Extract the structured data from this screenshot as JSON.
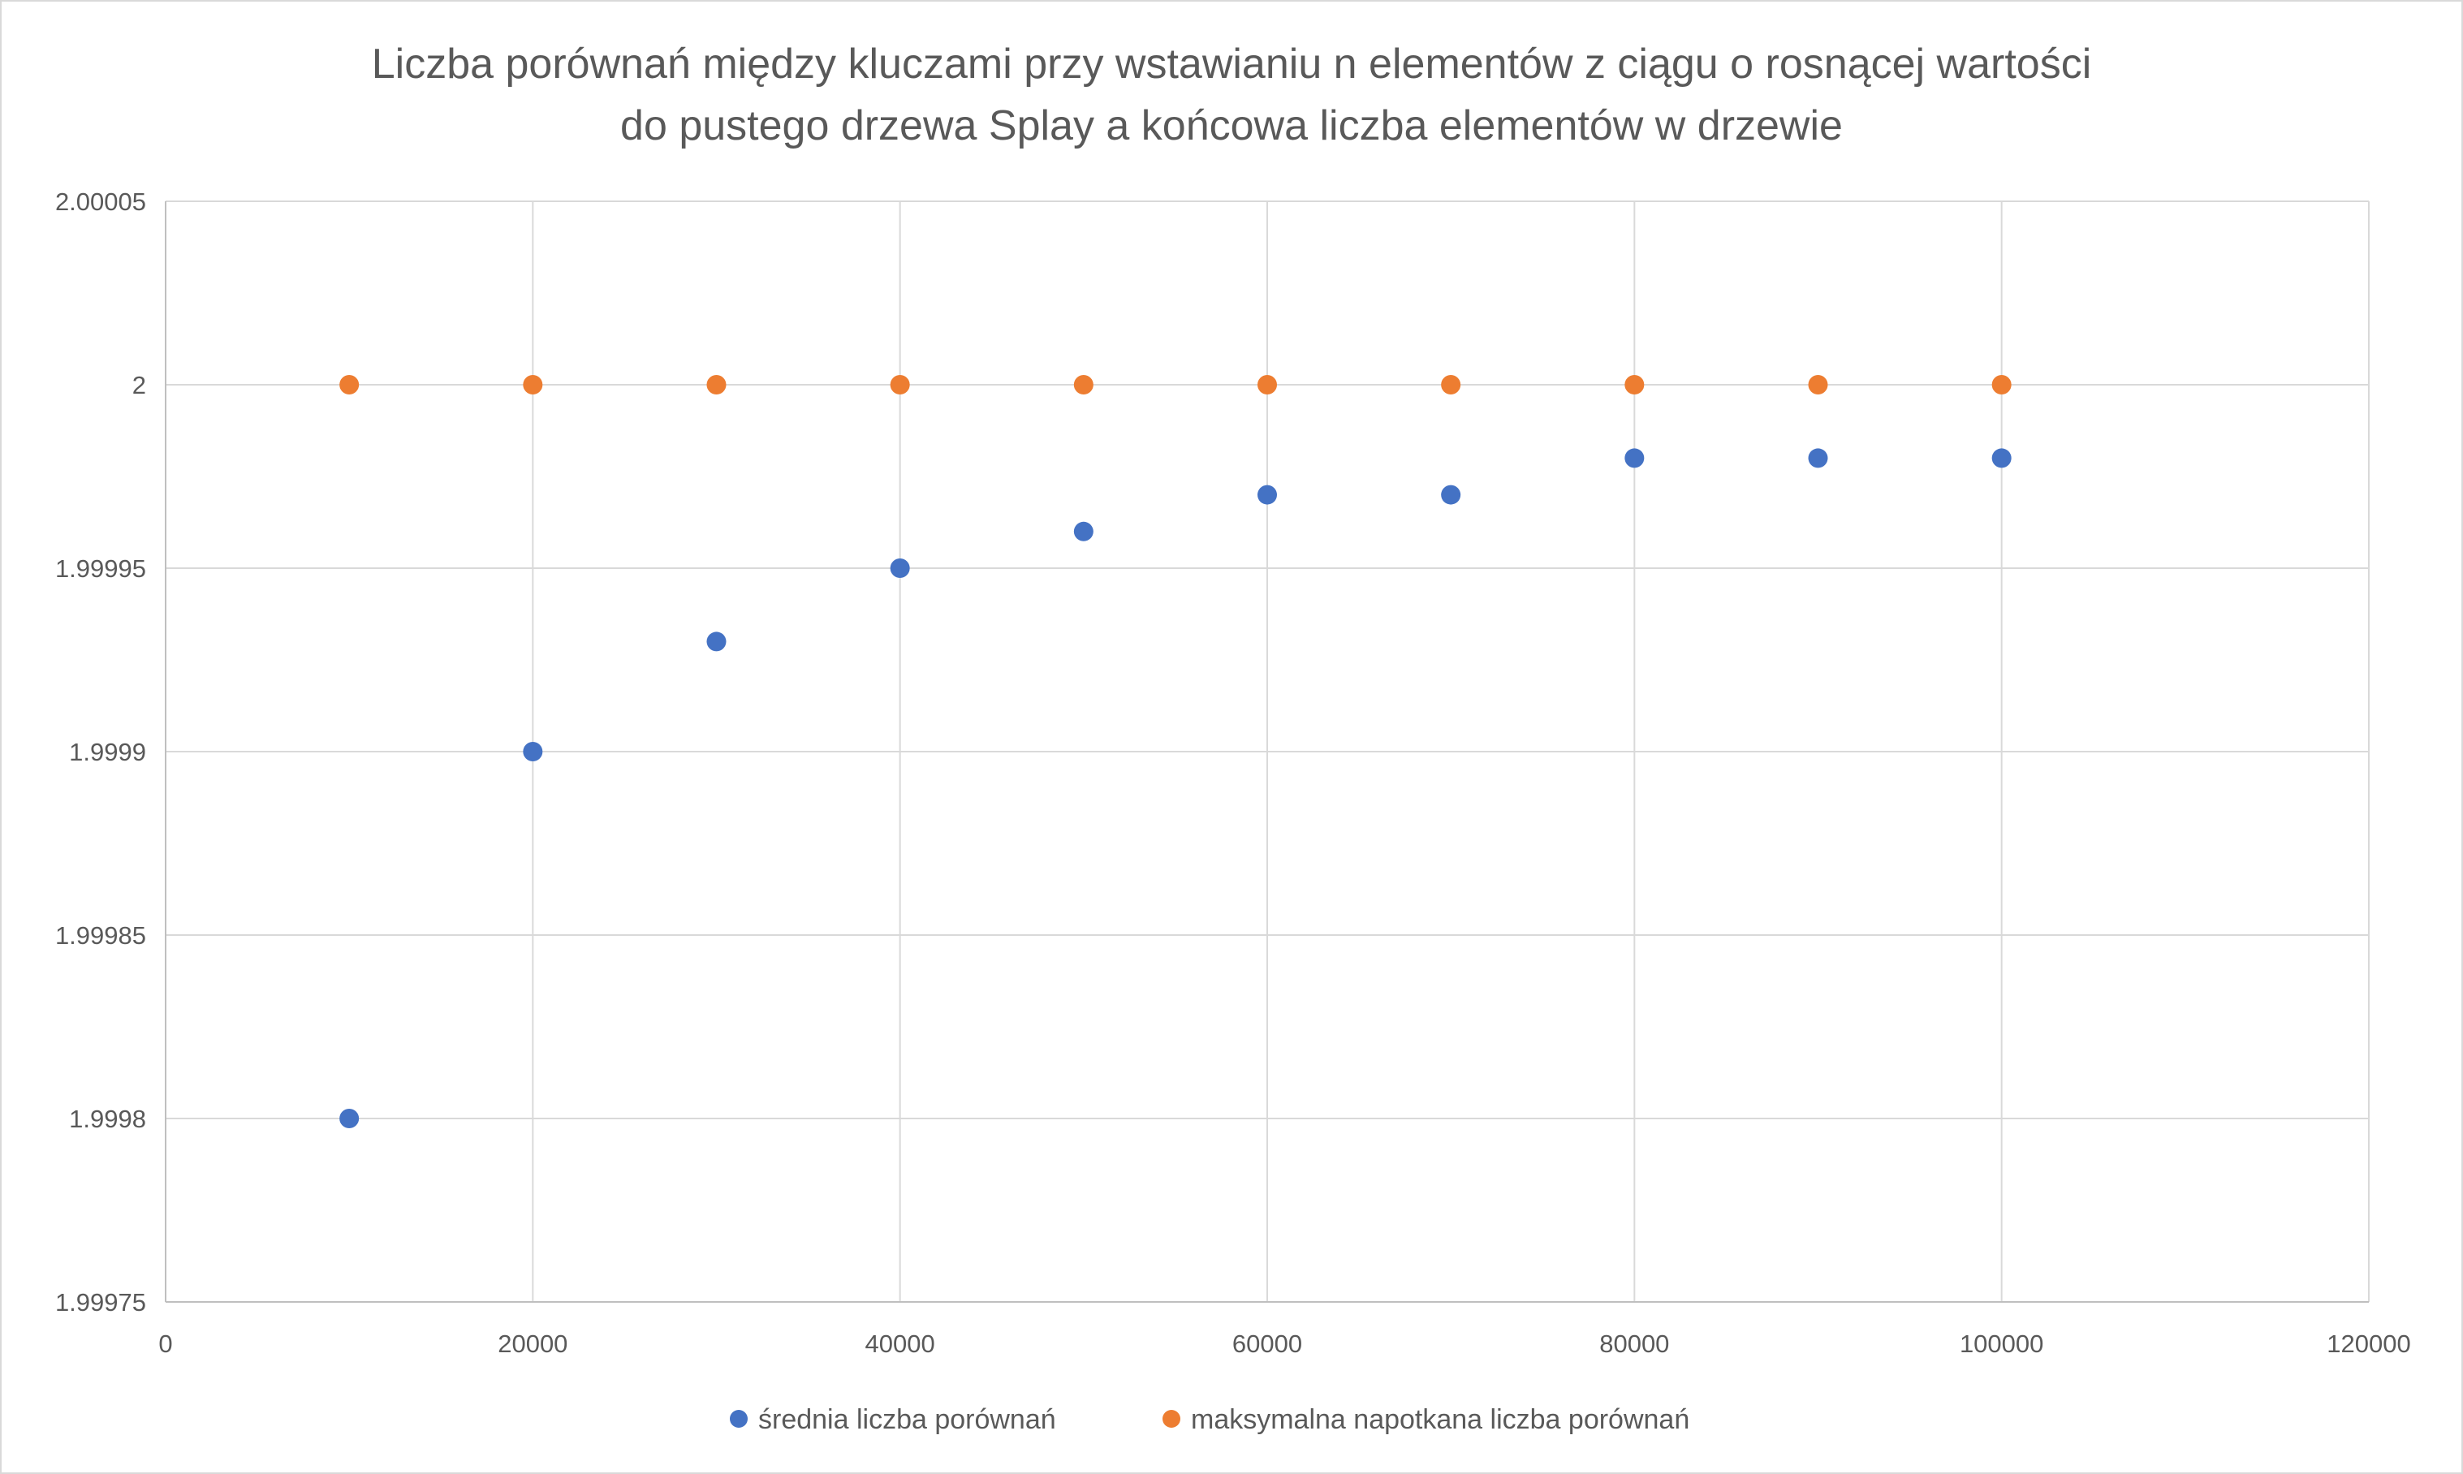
{
  "chart_data": {
    "type": "scatter",
    "title": [
      "Liczba porównań między kluczami przy wstawianiu n elementów z ciągu o rosnącej wartości",
      "do pustego drzewa Splay a końcowa liczba elementów w drzewie"
    ],
    "xlabel": "",
    "ylabel": "",
    "xlim": [
      0,
      120000
    ],
    "ylim": [
      1.99975,
      2.00005
    ],
    "x_ticks": [
      0,
      20000,
      40000,
      60000,
      80000,
      100000,
      120000
    ],
    "y_ticks": [
      1.99975,
      1.9998,
      1.99985,
      1.9999,
      1.99995,
      2,
      2.00005
    ],
    "x_tick_labels": [
      "0",
      "20000",
      "40000",
      "60000",
      "80000",
      "100000",
      "120000"
    ],
    "y_tick_labels": [
      "1.99975",
      "1.9998",
      "1.99985",
      "1.9999",
      "1.99995",
      "2",
      "2.00005"
    ],
    "grid": true,
    "legend_position": "bottom",
    "series": [
      {
        "name": "średnia liczba porównań",
        "color": "#4472c4",
        "x": [
          10000,
          20000,
          30000,
          40000,
          50000,
          60000,
          70000,
          80000,
          90000,
          100000
        ],
        "y": [
          1.9998,
          1.9999,
          1.99993,
          1.99995,
          1.99996,
          1.99997,
          1.99997,
          1.99998,
          1.99998,
          1.99998
        ]
      },
      {
        "name": "maksymalna napotkana liczba porównań",
        "color": "#ed7d31",
        "x": [
          10000,
          20000,
          30000,
          40000,
          50000,
          60000,
          70000,
          80000,
          90000,
          100000
        ],
        "y": [
          2,
          2,
          2,
          2,
          2,
          2,
          2,
          2,
          2,
          2
        ]
      }
    ]
  }
}
